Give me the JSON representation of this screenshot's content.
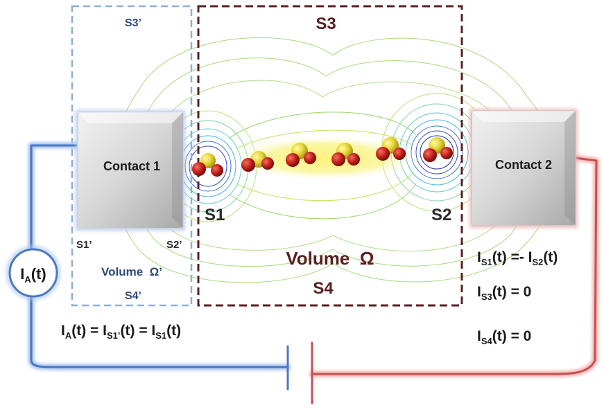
{
  "contacts": {
    "contact1": "Contact 1",
    "contact2": "Contact 2"
  },
  "volume_main": {
    "top_label": "S3",
    "bottom_label": "S4",
    "name": "Volume  Ω",
    "left_surface": "S1",
    "right_surface": "S2"
  },
  "volume_prime": {
    "top_label": "S3’",
    "bottom_label": "S4’",
    "left_surface": "S1’",
    "right_surface": "S2’",
    "name": "Volume  Ω’"
  },
  "ammeter": {
    "I": "I",
    "sub": "A",
    "rest": "(t)"
  },
  "equations": {
    "left": {
      "p1": "I",
      "s1": "A",
      "p2": "(t) = I",
      "s2": "S1’",
      "p3": "(t) = I",
      "s3": "S1",
      "p4": "(t)"
    },
    "r1": {
      "p1": "I",
      "s1": "S1",
      "p2": "(t) =- I",
      "s2": "S2",
      "p3": "(t)"
    },
    "r2": {
      "p1": "I",
      "s1": "S3",
      "p2": "(t) = 0"
    },
    "r3": {
      "p1": "I",
      "s1": "S4",
      "p2": "(t) = 0"
    }
  },
  "colors": {
    "blue_wire": "#4a78c2",
    "blue_glow": "#aac4ee",
    "red_wire": "#c8504e",
    "red_glow": "#f2b4b2",
    "dark_text": "#2a2a2a",
    "prime_label": "#2e4a7a",
    "main_label": "#5a2020",
    "dashed_blue": "#8ab0da",
    "dashed_brown": "#5a2020",
    "contour_green": "#9ad56a"
  },
  "icons": {
    "molecule": "sulfur-oxygen-molecule",
    "ammeter": "ammeter-circle"
  }
}
